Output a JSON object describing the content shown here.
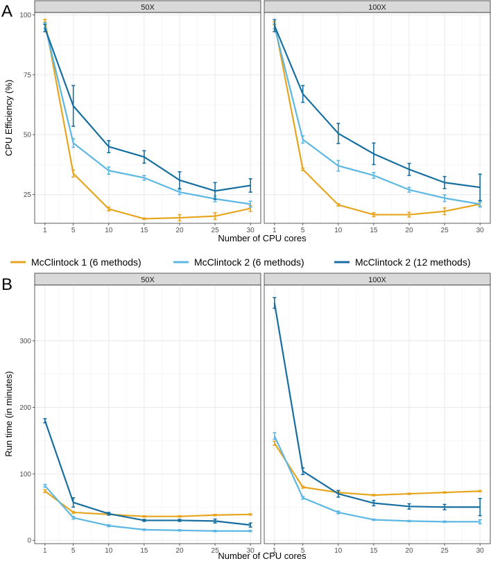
{
  "colors": {
    "mcclintock1_6": "#E6A51D",
    "mcclintock2_6": "#5DB7E3",
    "mcclintock2_12": "#156E9F",
    "strip_bg": "#D9D9D9",
    "grid": "#EBEBEB",
    "frame": "#333333"
  },
  "legend": {
    "items": [
      {
        "label": "McClintock 1 (6 methods)",
        "color": "#E6A51D"
      },
      {
        "label": "McClintock 2 (6 methods)",
        "color": "#5DB7E3"
      },
      {
        "label": "McClintock 2 (12 methods)",
        "color": "#156E9F"
      }
    ]
  },
  "chart_data": [
    {
      "label": "A",
      "type": "line",
      "xlabel": "Number of CPU cores",
      "ylabel": "CPU Efficiency (%)",
      "x": [
        1,
        5,
        10,
        15,
        20,
        25,
        30
      ],
      "xticks": [
        1,
        5,
        10,
        15,
        20,
        25,
        30
      ],
      "yticks": [
        25,
        50,
        75,
        100
      ],
      "ylim": [
        13,
        101
      ],
      "facets": [
        {
          "title": "50X",
          "series": [
            {
              "name": "McClintock 1 (6 methods)",
              "values": [
                97.5,
                33.8,
                19.0,
                14.9,
                15.3,
                16.0,
                19.2
              ],
              "err": [
                0.6,
                1.5,
                0.8,
                0.3,
                1.3,
                1.4,
                1.2
              ]
            },
            {
              "name": "McClintock 2 (6 methods)",
              "values": [
                95.5,
                46.5,
                35.0,
                32.0,
                26.0,
                23.2,
                21.0
              ],
              "err": [
                1.2,
                1.8,
                1.5,
                1.0,
                1.0,
                1.2,
                1.2
              ]
            },
            {
              "name": "McClintock 2 (12 methods)",
              "values": [
                94.5,
                62.0,
                45.0,
                40.7,
                31.0,
                26.5,
                28.8
              ],
              "err": [
                1.5,
                8.5,
                2.5,
                2.6,
                3.5,
                3.5,
                2.8
              ]
            }
          ]
        },
        {
          "title": "100X",
          "series": [
            {
              "name": "McClintock 1 (6 methods)",
              "values": [
                96.5,
                35.5,
                20.7,
                16.6,
                16.6,
                18.0,
                21.0
              ],
              "err": [
                0.6,
                0.5,
                0.5,
                0.8,
                1.0,
                1.4,
                0.8
              ]
            },
            {
              "name": "McClintock 2 (6 methods)",
              "values": [
                95.2,
                48.0,
                37.0,
                33.0,
                27.0,
                23.5,
                21.0
              ],
              "err": [
                1.0,
                1.5,
                2.2,
                1.2,
                1.0,
                1.4,
                1.2
              ]
            },
            {
              "name": "McClintock 2 (12 methods)",
              "values": [
                95.5,
                67.0,
                50.5,
                42.0,
                35.5,
                30.0,
                28.0
              ],
              "err": [
                2.5,
                3.5,
                4.2,
                4.5,
                2.5,
                2.5,
                5.5
              ]
            }
          ]
        }
      ]
    },
    {
      "label": "B",
      "type": "line",
      "xlabel": "Number of CPU cores",
      "ylabel": "Run time (in minutes)",
      "x": [
        1,
        5,
        10,
        15,
        20,
        25,
        30
      ],
      "xticks": [
        1,
        5,
        10,
        15,
        20,
        25,
        30
      ],
      "yticks": [
        0,
        100,
        200,
        300
      ],
      "ylim": [
        -5,
        384
      ],
      "facets": [
        {
          "title": "50X",
          "series": [
            {
              "name": "McClintock 1 (6 methods)",
              "values": [
                74,
                42,
                39,
                36,
                36,
                38,
                39
              ],
              "err": [
                2,
                1.5,
                1,
                1,
                1,
                1,
                1
              ]
            },
            {
              "name": "McClintock 2 (6 methods)",
              "values": [
                82,
                34,
                22,
                16,
                15,
                14,
                14
              ],
              "err": [
                2,
                2,
                1.5,
                1,
                1,
                1,
                1
              ]
            },
            {
              "name": "McClintock 2 (12 methods)",
              "values": [
                180,
                57,
                40,
                30,
                30,
                29,
                23
              ],
              "err": [
                3,
                7,
                2,
                1.5,
                1.5,
                3,
                3
              ]
            }
          ]
        },
        {
          "title": "100X",
          "series": [
            {
              "name": "McClintock 1 (6 methods)",
              "values": [
                146,
                80,
                72,
                68,
                70,
                72,
                74
              ],
              "err": [
                3,
                1.5,
                1,
                1,
                1,
                1,
                1
              ]
            },
            {
              "name": "McClintock 2 (6 methods)",
              "values": [
                157,
                64,
                42,
                31,
                29,
                28,
                28
              ],
              "err": [
                5,
                2,
                2,
                1,
                1,
                1,
                3
              ]
            },
            {
              "name": "McClintock 2 (12 methods)",
              "values": [
                357,
                104,
                70,
                56,
                51,
                50,
                50
              ],
              "err": [
                8,
                5,
                5,
                4,
                4,
                4,
                13
              ]
            }
          ]
        }
      ]
    }
  ]
}
